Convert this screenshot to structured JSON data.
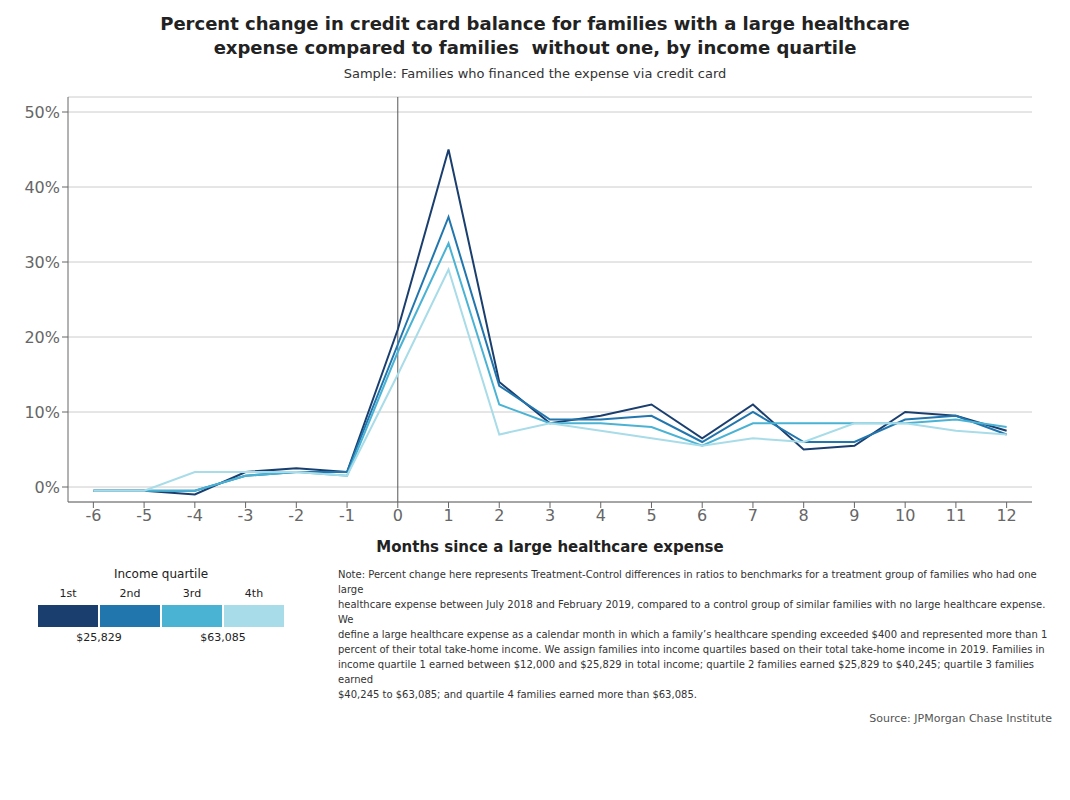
{
  "chart_data": {
    "type": "line",
    "title": "Percent change in credit card balance for families with a large healthcare\nexpense compared to families  without one, by income quartile",
    "subtitle": "Sample: Families who financed the expense via credit card",
    "x_label": "Months since a large healthcare expense",
    "x": [
      -6,
      -5,
      -4,
      -3,
      -2,
      -1,
      0,
      1,
      2,
      3,
      4,
      5,
      6,
      7,
      8,
      9,
      10,
      11,
      12
    ],
    "series": [
      {
        "name": "1st",
        "color": "#1a3f6f",
        "values": [
          -0.5,
          -0.5,
          -1.0,
          2.0,
          2.5,
          2.0,
          21.0,
          45.0,
          14.0,
          8.5,
          9.5,
          11.0,
          6.5,
          11.0,
          5.0,
          5.5,
          10.0,
          9.5,
          7.5
        ]
      },
      {
        "name": "2nd",
        "color": "#2176ae",
        "values": [
          -0.5,
          -0.5,
          -0.5,
          1.5,
          2.0,
          2.0,
          19.0,
          36.0,
          13.5,
          9.0,
          9.0,
          9.5,
          6.0,
          10.0,
          6.0,
          6.0,
          9.0,
          9.5,
          7.0
        ]
      },
      {
        "name": "3rd",
        "color": "#4ab3d4",
        "values": [
          -0.5,
          -0.5,
          -0.5,
          1.5,
          2.0,
          1.5,
          18.0,
          32.5,
          11.0,
          8.5,
          8.5,
          8.0,
          5.5,
          8.5,
          8.5,
          8.5,
          8.5,
          9.0,
          8.0
        ]
      },
      {
        "name": "4th",
        "color": "#a8dce8",
        "values": [
          -0.5,
          -0.5,
          2.0,
          2.0,
          2.0,
          1.5,
          15.0,
          29.0,
          7.0,
          8.5,
          7.5,
          6.5,
          5.5,
          6.5,
          6.0,
          8.5,
          8.5,
          7.5,
          7.0
        ]
      }
    ],
    "xlim": [
      -6.5,
      12.5
    ],
    "ylim": [
      -2,
      52
    ],
    "xticks": [
      -6,
      -5,
      -4,
      -3,
      -2,
      -1,
      0,
      1,
      2,
      3,
      4,
      5,
      6,
      7,
      8,
      9,
      10,
      11,
      12
    ],
    "yticks": [
      {
        "value": 0,
        "label": "0%"
      },
      {
        "value": 10,
        "label": "10%"
      },
      {
        "value": 20,
        "label": "20%"
      },
      {
        "value": 30,
        "label": "30%"
      },
      {
        "value": 40,
        "label": "40%"
      },
      {
        "value": 50,
        "label": "50%"
      }
    ],
    "grid": "y",
    "legend": "bottom",
    "legend_title": "Income quartile",
    "legend_thresholds": [
      {
        "label": "$25,829",
        "between": [
          "1st",
          "2nd"
        ]
      },
      {
        "label": "$63,085",
        "between": [
          "3rd",
          "4th"
        ]
      }
    ],
    "reference_lines": [
      {
        "x": 0
      }
    ],
    "notes": [
      "Note: Percent change here represents Treatment-Control differences in ratios to benchmarks for a treatment group of families who had one large",
      "healthcare expense between July 2018 and February 2019, compared to a control group of similar families with no large healthcare expense. We",
      "define a large healthcare expense as a calendar month in which a family’s healthcare spending exceeded $400 and represented more than 1",
      "percent of their total take-home income. We assign families into income quartiles based on their total take-home income in 2019. Families in",
      "income quartile 1 earned between $12,000 and $25,829 in total income; quartile 2 families earned $25,829 to $40,245; quartile 3 families earned",
      "$40,245 to $63,085; and quartile 4 families earned more than $63,085."
    ],
    "source": "Source: JPMorgan Chase Institute"
  }
}
